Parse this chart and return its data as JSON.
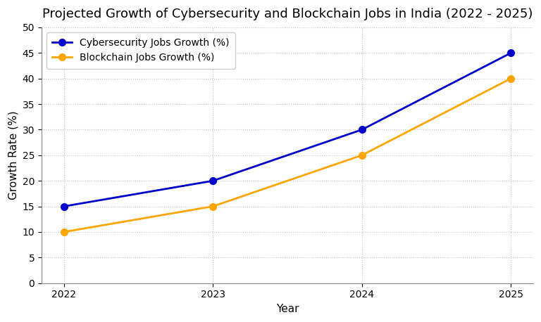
{
  "title": "Projected Growth of Cybersecurity and Blockchain Jobs in India (2022 - 2025)",
  "xlabel": "Year",
  "ylabel": "Growth Rate (%)",
  "years": [
    2022,
    2023,
    2024,
    2025
  ],
  "cybersecurity_values": [
    15,
    20,
    30,
    45
  ],
  "blockchain_values": [
    10,
    15,
    25,
    40
  ],
  "cybersecurity_color": "#0000cc",
  "blockchain_color": "#FFA500",
  "background_color": "#ffffff",
  "plot_bg_color": "#ffffff",
  "grid_color": "#aaaaaa",
  "ylim": [
    0,
    50
  ],
  "yticks": [
    0,
    5,
    10,
    15,
    20,
    25,
    30,
    35,
    40,
    45,
    50
  ],
  "xticks": [
    2022,
    2023,
    2024,
    2025
  ],
  "legend_labels": [
    "Cybersecurity Jobs Growth (%)",
    "Blockchain Jobs Growth (%)"
  ],
  "title_fontsize": 13,
  "label_fontsize": 11,
  "tick_fontsize": 10,
  "legend_fontsize": 10,
  "line_width": 2.0,
  "marker_size": 7,
  "marker_style": "o"
}
